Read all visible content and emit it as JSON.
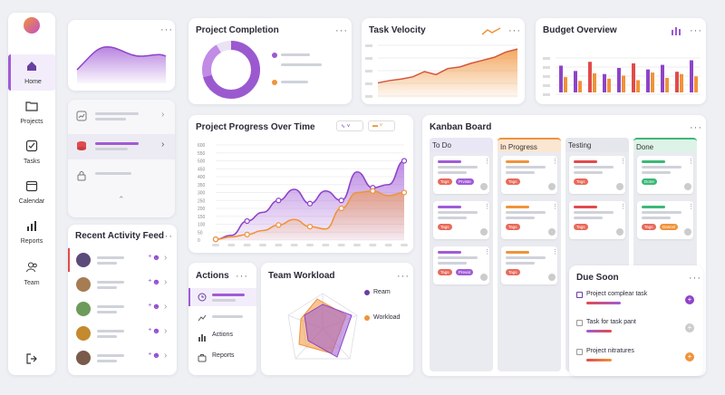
{
  "sidebar": {
    "items": [
      {
        "label": "Home"
      },
      {
        "label": "Projects"
      },
      {
        "label": "Tasks"
      },
      {
        "label": "Calendar"
      },
      {
        "label": "Reports"
      },
      {
        "label": "Team"
      }
    ]
  },
  "project_completion": {
    "title": "Project Completion"
  },
  "task_velocity": {
    "title": "Task Velocity"
  },
  "budget": {
    "title": "Budget Overview"
  },
  "progress": {
    "title": "Project Progress Over Time"
  },
  "kanban": {
    "title": "Kanban Board",
    "columns": [
      {
        "label": "To Do",
        "cards": [
          {
            "tags": [
              "Tags",
              "Prviste"
            ]
          },
          {
            "tags": [
              "Tags"
            ]
          },
          {
            "tags": [
              "Tags",
              "Prevat"
            ]
          }
        ]
      },
      {
        "label": "In Progress",
        "cards": [
          {
            "tags": [
              "Tags"
            ]
          },
          {
            "tags": [
              "Tags"
            ]
          },
          {
            "tags": [
              "Tags"
            ]
          }
        ]
      },
      {
        "label": "Testing",
        "cards": [
          {
            "tags": [
              "Tags"
            ]
          },
          {
            "tags": [
              "Tags"
            ]
          }
        ]
      },
      {
        "label": "Done",
        "cards": [
          {
            "tags": [
              "Done"
            ]
          },
          {
            "tags": [
              "Tags",
              "Dancel"
            ]
          }
        ]
      }
    ]
  },
  "activity": {
    "title": "Recent Activity Feed"
  },
  "actions": {
    "title": "Actions",
    "items": [
      "Actions",
      "Reports"
    ]
  },
  "workload": {
    "title": "Team Workload",
    "legend": [
      "Ream",
      "Workload"
    ]
  },
  "due": {
    "title": "Due Soon",
    "items": [
      "Project complear task",
      "Task for task pant",
      "Project nitratures"
    ]
  },
  "colors": {
    "accent": "#a15bd6",
    "orange": "#f0933a",
    "red": "#e14b4b"
  },
  "chart_data": [
    {
      "type": "line",
      "name": "task-velocity",
      "values": [
        2,
        2.3,
        2.5,
        2.8,
        3.5,
        3.1,
        3.9,
        4.1,
        4.6,
        5,
        5.4,
        6.1,
        6.5
      ],
      "series": [
        {
          "values": [
            2,
            2.3,
            2.5,
            2.8,
            3.5,
            3.1,
            3.9,
            4.1,
            4.6,
            5,
            5.4,
            6.1,
            6.5
          ]
        }
      ]
    },
    {
      "type": "bar",
      "name": "budget-overview",
      "series": [
        {
          "values": [
            35,
            28,
            40,
            24,
            32,
            38,
            30,
            36,
            27,
            42
          ]
        },
        {
          "values": [
            20,
            15,
            25,
            18,
            22,
            16,
            26,
            19,
            24,
            21
          ]
        }
      ]
    },
    {
      "type": "line",
      "name": "project-progress",
      "x": [
        1,
        2,
        3,
        4,
        5,
        6,
        7,
        8,
        9,
        10,
        11,
        12,
        13
      ],
      "ylim": [
        0,
        600
      ],
      "yticks": [
        0,
        50,
        100,
        150,
        200,
        250,
        300,
        350,
        400,
        450,
        500,
        550,
        600
      ],
      "series": [
        {
          "values": [
            5,
            30,
            120,
            175,
            250,
            320,
            230,
            310,
            250,
            430,
            330,
            350,
            500
          ]
        },
        {
          "values": [
            5,
            20,
            35,
            60,
            95,
            130,
            85,
            70,
            200,
            300,
            310,
            280,
            300
          ]
        }
      ]
    }
  ]
}
